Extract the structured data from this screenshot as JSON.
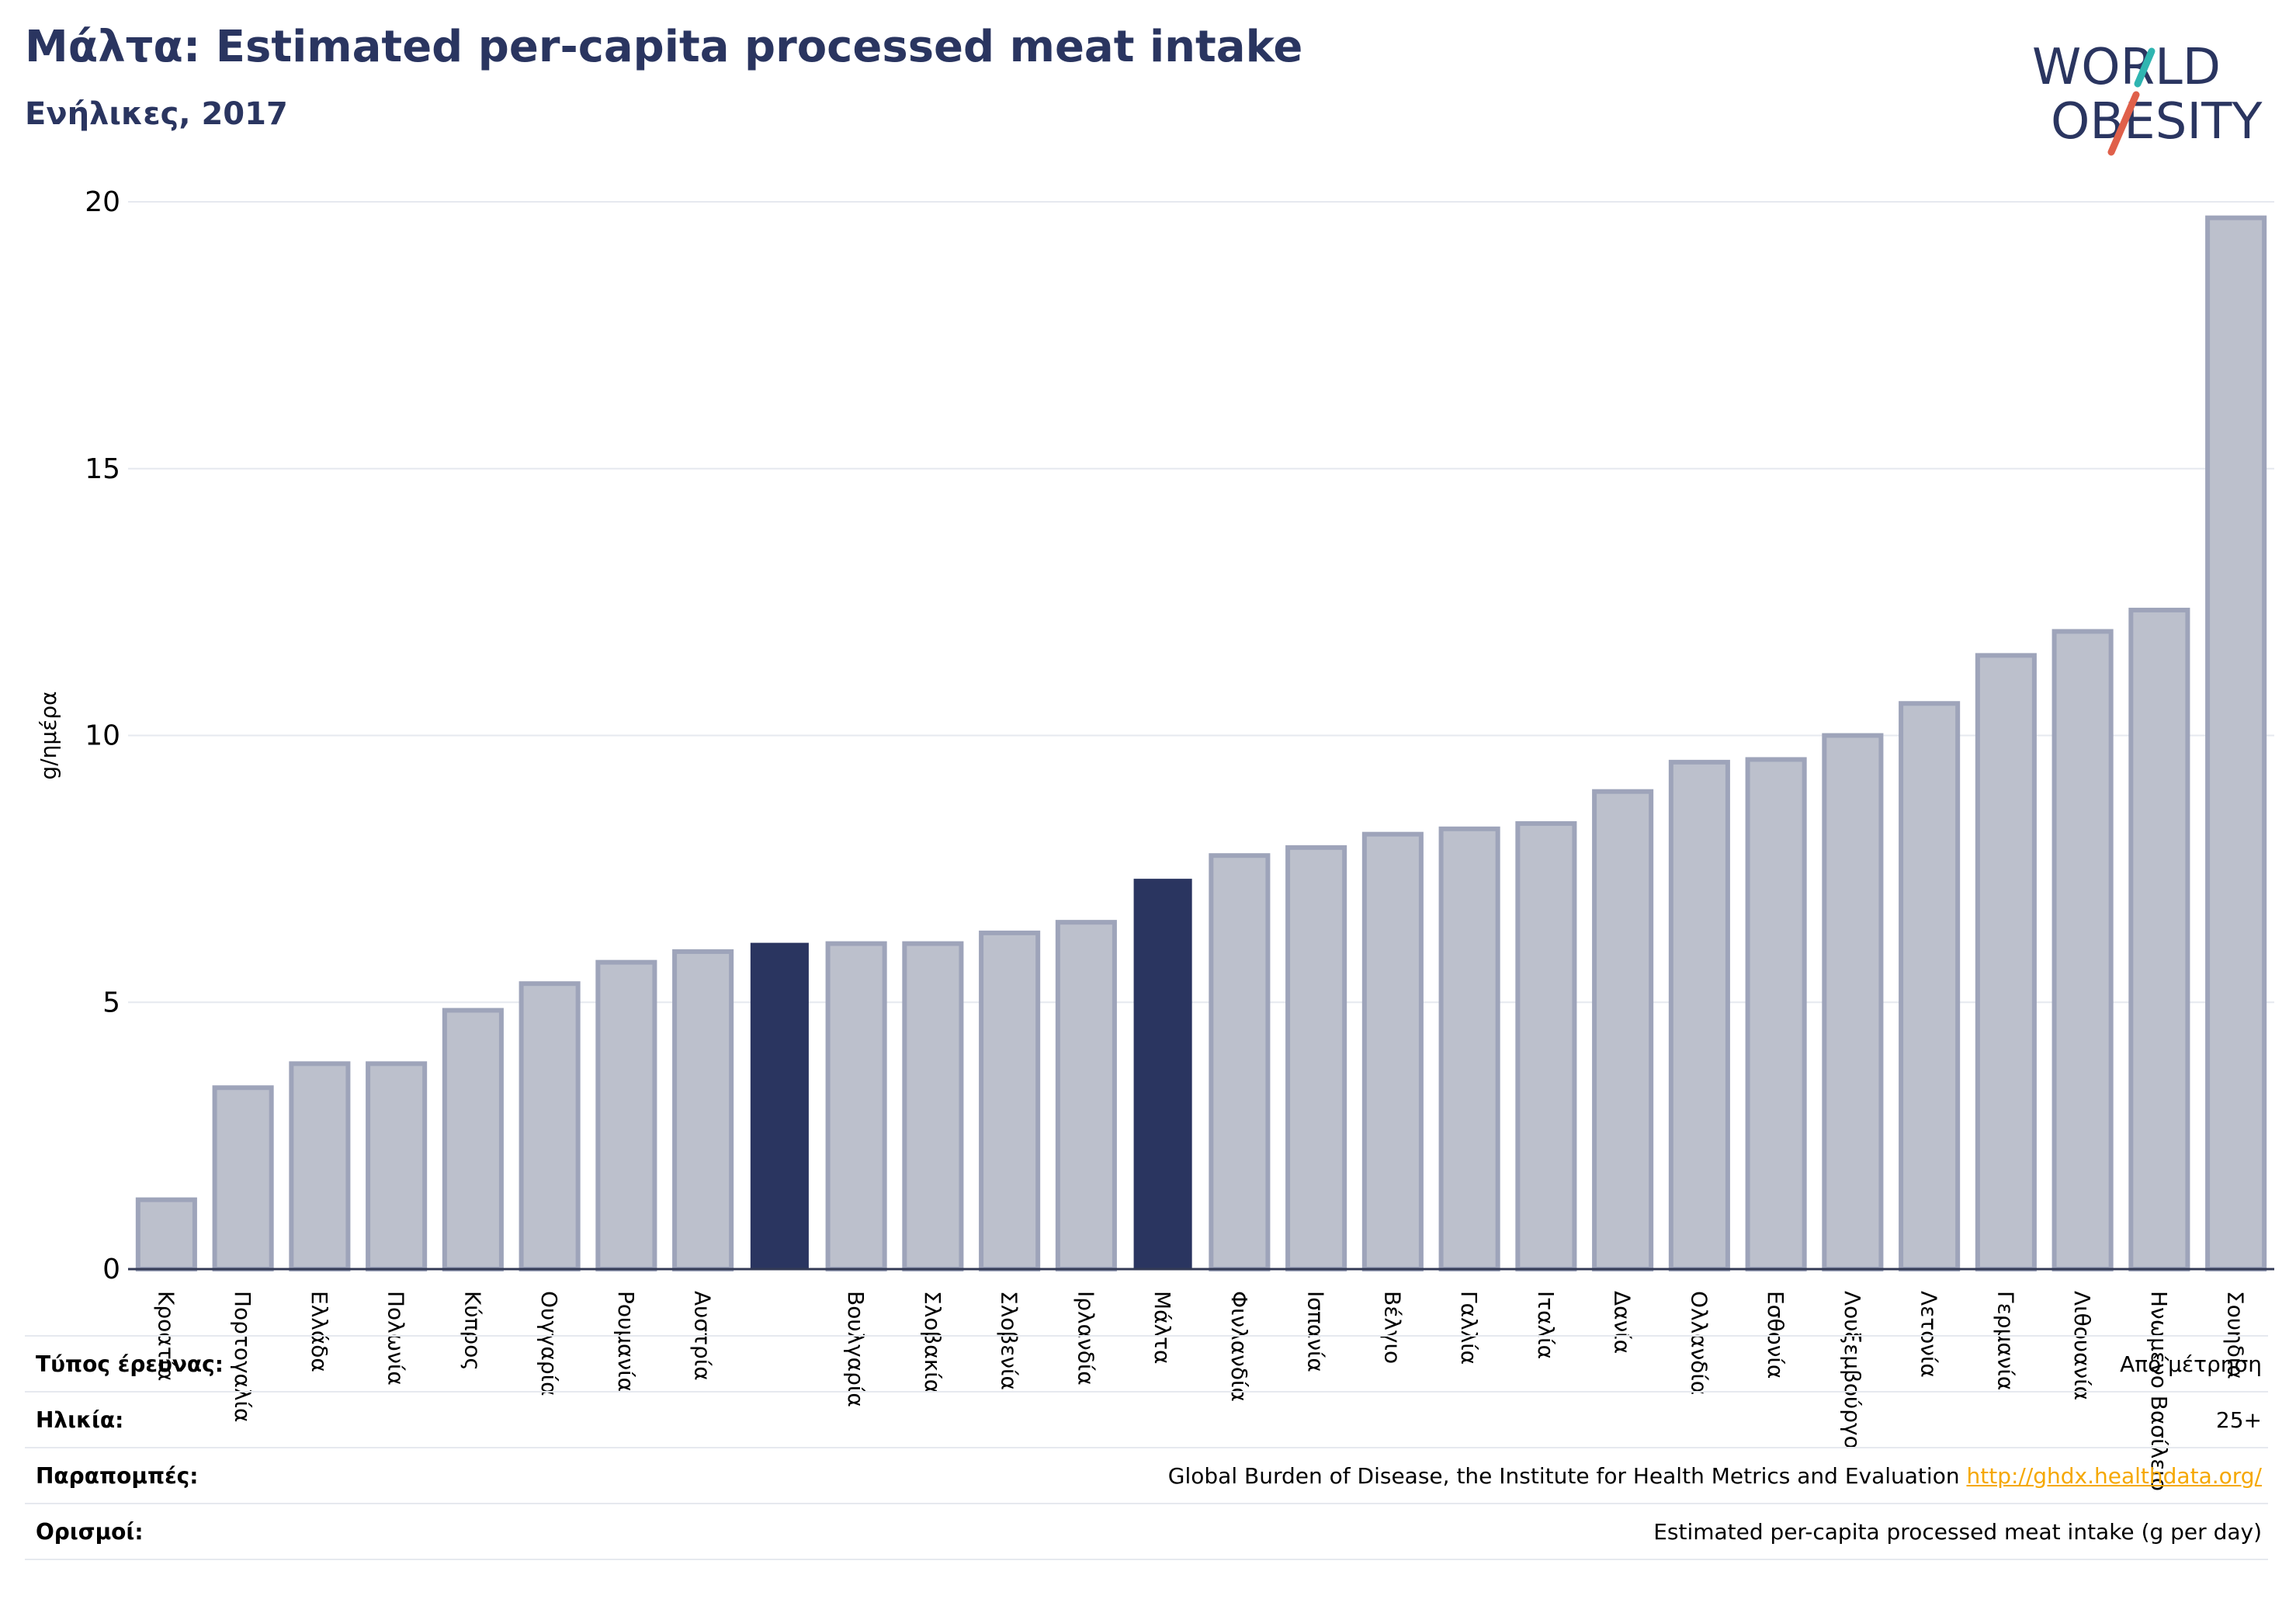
{
  "header": {
    "title": "Μάλτα: Estimated per-capita processed meat intake",
    "subtitle": "Ενήλικες, 2017"
  },
  "logo": {
    "line1": "WORLD",
    "line2": "OBESITY",
    "colors": {
      "text": "#2a3560",
      "slash_teal": "#2fb5b1",
      "slash_red": "#e0604a"
    }
  },
  "chart_data": {
    "type": "bar",
    "ylabel": "g/ημέρα",
    "ylim": [
      0,
      20
    ],
    "yticks": [
      0,
      5,
      10,
      15,
      20
    ],
    "grid": true,
    "categories": [
      "Κροατία",
      "Πορτογαλία",
      "Ελλάδα",
      "Πολωνία",
      "Κύπρος",
      "Ουγγαρία",
      "Ρουμανία",
      "Αυστρία",
      "",
      "Βουλγαρία",
      "Σλοβακία",
      "Σλοβενία",
      "Ιρλανδία",
      "Μάλτα",
      "Φινλανδία",
      "Ισπανία",
      "Βέλγιο",
      "Γαλλία",
      "Ιταλία",
      "Δανία",
      "Ολλανδία",
      "Εσθονία",
      "Λουξεμβούργο",
      "Λετονία",
      "Γερμανία",
      "Λιθουανία",
      "Ηνωμένο Βασίλειο",
      "Σουηδία"
    ],
    "values": [
      1.3,
      3.4,
      3.85,
      3.85,
      4.85,
      5.35,
      5.75,
      5.95,
      6.1,
      6.1,
      6.1,
      6.3,
      6.5,
      7.3,
      7.75,
      7.9,
      8.15,
      8.25,
      8.35,
      8.95,
      9.5,
      9.55,
      10.0,
      10.6,
      11.5,
      11.95,
      12.35,
      19.7
    ],
    "highlighted": [
      8,
      13
    ],
    "colors": {
      "bar": "#bcc0cc",
      "bar_edge": "#9ea4ba",
      "highlight": "#2a3560",
      "axis": "#333a55",
      "grid": "#e6e9ef"
    }
  },
  "info": {
    "rows": [
      {
        "label": "Τύπος έρευνας:",
        "value": "Από μέτρηση"
      },
      {
        "label": "Ηλικία:",
        "value": "25+"
      },
      {
        "label": "Παραπομπές:",
        "value": "Global Burden of Disease, the Institute for Health Metrics and Evaluation",
        "link": "http://ghdx.healthdata.org/"
      },
      {
        "label": "Ορισμοί:",
        "value": "Estimated per-capita processed meat intake (g per day)"
      }
    ]
  }
}
